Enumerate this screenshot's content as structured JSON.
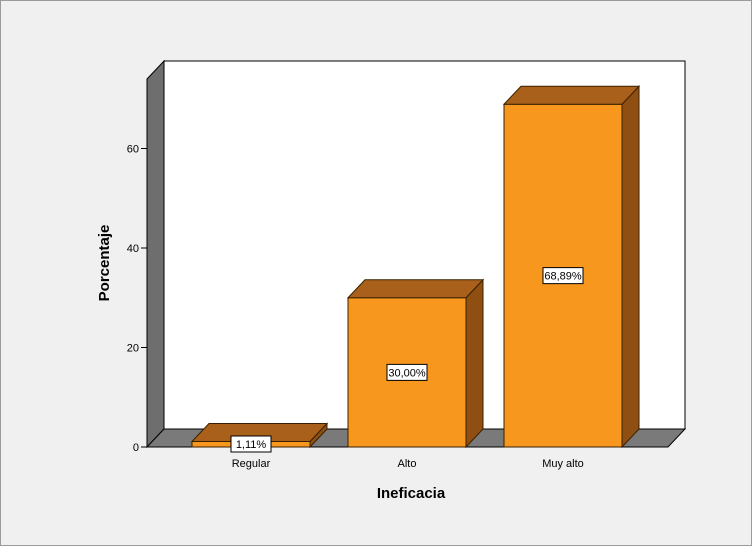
{
  "chart_data": {
    "type": "bar",
    "categories": [
      "Regular",
      "Alto",
      "Muy alto"
    ],
    "values": [
      1.11,
      30.0,
      68.89
    ],
    "data_labels": [
      "1,11%",
      "30,00%",
      "68,89%"
    ],
    "xlabel": "Ineficacia",
    "ylabel": "Porcentaje",
    "ylim": [
      0,
      72
    ],
    "yticks": [
      0,
      20,
      40,
      60
    ],
    "ytick_labels": [
      "0",
      "20",
      "40",
      "60"
    ],
    "style": "3d",
    "grid": false,
    "legend": "none",
    "colors": {
      "bar_front": "#f7971e",
      "bar_top": "#a8601a",
      "bar_side": "#8f4f12",
      "bar_stroke": "#3a2000",
      "floor": "#7a7a7a",
      "left_wall": "#6e6e6e",
      "plot_bg": "#ffffff",
      "frame_bg": "#f0f0f0"
    }
  }
}
